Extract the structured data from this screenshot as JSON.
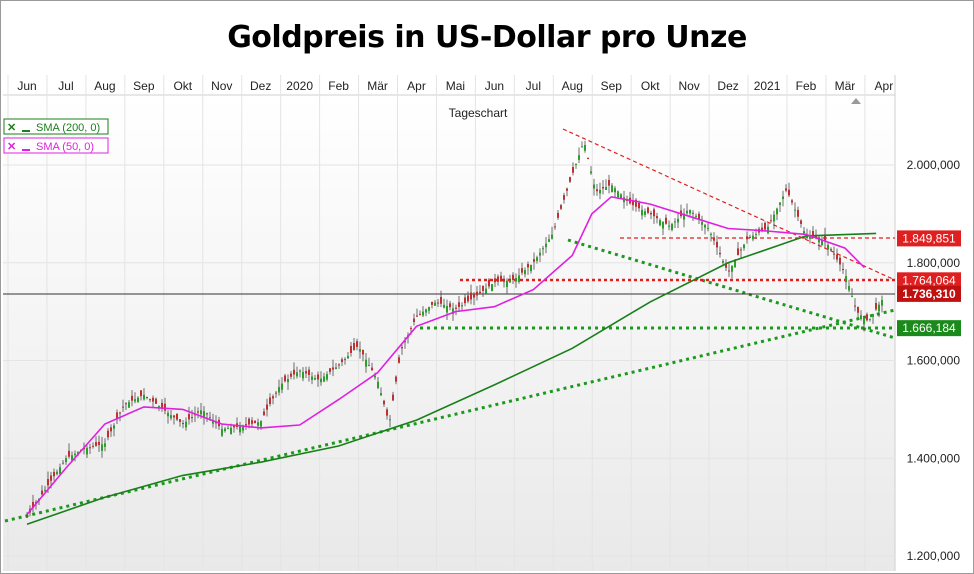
{
  "title": "Goldpreis in US-Dollar pro Unze",
  "chart_data": {
    "type": "line",
    "subtitle": "Tageschart",
    "x_ticks": [
      "Jun",
      "Jul",
      "Aug",
      "Sep",
      "Okt",
      "Nov",
      "Dez",
      "2020",
      "Feb",
      "Mär",
      "Apr",
      "Mai",
      "Jun",
      "Jul",
      "Aug",
      "Sep",
      "Okt",
      "Nov",
      "Dez",
      "2021",
      "Feb",
      "Mär",
      "Apr"
    ],
    "ylim": [
      1200000,
      2100000
    ],
    "y_ticks": [
      {
        "label": "2.000,000",
        "value": 2000000
      },
      {
        "label": "1.800,000",
        "value": 1800000
      },
      {
        "label": "1.600,000",
        "value": 1600000
      },
      {
        "label": "1.400,000",
        "value": 1400000
      },
      {
        "label": "1.200,000",
        "value": 1200000
      }
    ],
    "grid": true,
    "legend_position": "top-left",
    "series": [
      {
        "name": "SMA (200, 0)",
        "color": "#1a7f1a",
        "x": [
          0,
          2,
          4,
          6,
          8,
          10,
          12,
          14,
          16,
          18,
          20,
          21.8
        ],
        "values": [
          1265000,
          1320000,
          1365000,
          1392000,
          1425000,
          1478000,
          1550000,
          1625000,
          1720000,
          1800000,
          1855000,
          1860000
        ]
      },
      {
        "name": "SMA (50, 0)",
        "color": "#e020e0",
        "x": [
          0,
          1,
          2,
          3,
          4,
          5,
          6,
          7,
          8,
          9,
          10,
          11,
          12,
          13,
          14,
          14.5,
          15,
          16,
          17,
          18,
          19,
          20,
          21,
          21.5
        ],
        "values": [
          1285000,
          1380000,
          1470000,
          1505000,
          1500000,
          1470000,
          1462000,
          1468000,
          1520000,
          1575000,
          1670000,
          1700000,
          1710000,
          1745000,
          1815000,
          1900000,
          1935000,
          1920000,
          1895000,
          1870000,
          1865000,
          1858000,
          1830000,
          1790000
        ]
      }
    ],
    "price_candles_close_approx": {
      "x": [
        0,
        0.5,
        1,
        1.5,
        2,
        2.5,
        3,
        3.5,
        4,
        4.5,
        5,
        5.5,
        6,
        6.5,
        7,
        7.5,
        8,
        8.5,
        9,
        9.3,
        9.6,
        10,
        10.5,
        11,
        11.5,
        12,
        12.5,
        13,
        13.5,
        14,
        14.3,
        14.6,
        15,
        15.5,
        16,
        16.5,
        17,
        17.5,
        18,
        18.5,
        19,
        19.5,
        20,
        20.5,
        21,
        21.3,
        21.6,
        22
      ],
      "values": [
        1280000,
        1340000,
        1400000,
        1420000,
        1430000,
        1510000,
        1530000,
        1500000,
        1470000,
        1500000,
        1460000,
        1465000,
        1475000,
        1550000,
        1580000,
        1560000,
        1590000,
        1630000,
        1560000,
        1470000,
        1620000,
        1690000,
        1720000,
        1705000,
        1730000,
        1760000,
        1765000,
        1800000,
        1860000,
        1980000,
        2050000,
        1945000,
        1960000,
        1920000,
        1900000,
        1875000,
        1910000,
        1870000,
        1780000,
        1850000,
        1870000,
        1950000,
        1855000,
        1845000,
        1780000,
        1700000,
        1680000,
        1730000
      ]
    },
    "levels": [
      {
        "label": "1.849,851",
        "value": 1849851,
        "color": "#e02020"
      },
      {
        "label": "1.764,064",
        "value": 1764064,
        "color": "#e02020"
      },
      {
        "label": "1.736,310",
        "value": 1736310,
        "color": "#c01010"
      },
      {
        "label": "1.666,184",
        "value": 1666184,
        "color": "#1a8a1a"
      }
    ]
  }
}
